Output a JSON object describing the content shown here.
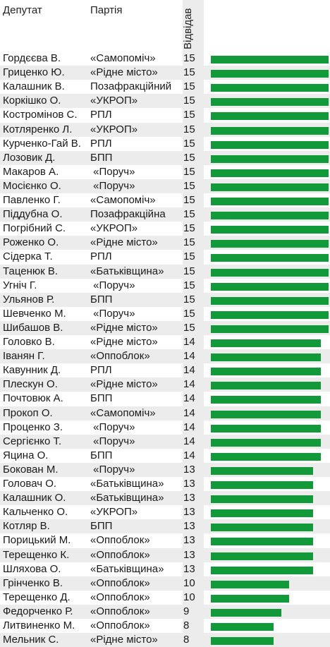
{
  "header": {
    "name": "Депутат",
    "party": "Партія",
    "visits": "Відвідав"
  },
  "colors": {
    "bar": "#129a3a",
    "stripe": "#ececec"
  },
  "chart_data": {
    "type": "bar",
    "orientation": "horizontal",
    "columns": [
      "Депутат",
      "Партія",
      "Відвідав"
    ],
    "xlim": [
      0,
      15
    ],
    "rows": [
      {
        "name": "Гордєєва В.",
        "party": "«Самопоміч»",
        "value": 15
      },
      {
        "name": "Гриценко Ю.",
        "party": "«Рідне місто»",
        "value": 15
      },
      {
        "name": "Калашник В.",
        "party": "Позафракційний",
        "value": 15
      },
      {
        "name": "Коркішко О.",
        "party": "«УКРОП»",
        "value": 15
      },
      {
        "name": "Костромінов С.",
        "party": "РПЛ",
        "value": 15
      },
      {
        "name": "Котляренко Л.",
        "party": "«УКРОП»",
        "value": 15
      },
      {
        "name": "Курченко-Гай В.",
        "party": "РПЛ",
        "value": 15
      },
      {
        "name": "Лозовик Д.",
        "party": "БПП",
        "value": 15
      },
      {
        "name": "Макаров А.",
        "party": " «Поруч»",
        "value": 15
      },
      {
        "name": "Мосієнко О.",
        "party": " «Поруч»",
        "value": 15
      },
      {
        "name": "Павленко Г.",
        "party": "«Самопоміч»",
        "value": 15
      },
      {
        "name": "Піддубна О.",
        "party": "Позафракційна",
        "value": 15
      },
      {
        "name": "Погрібний С.",
        "party": "«УКРОП»",
        "value": 15
      },
      {
        "name": "Роженко О.",
        "party": "«Рідне місто»",
        "value": 15
      },
      {
        "name": "Сідерка Т.",
        "party": "РПЛ",
        "value": 15
      },
      {
        "name": "Таценюк В.",
        "party": "«Батьківщина»",
        "value": 15
      },
      {
        "name": "Угніч Г.",
        "party": " «Поруч»",
        "value": 15
      },
      {
        "name": "Ульянов Р.",
        "party": "БПП",
        "value": 15
      },
      {
        "name": "Шевченко М.",
        "party": " «Поруч»",
        "value": 15
      },
      {
        "name": "Шибашов В.",
        "party": "«Рідне місто»",
        "value": 15
      },
      {
        "name": "Головко В.",
        "party": "«Рідне місто»",
        "value": 14
      },
      {
        "name": "Іванян Г.",
        "party": "«Оппоблок»",
        "value": 14
      },
      {
        "name": "Кавунник Д.",
        "party": "РПЛ",
        "value": 14
      },
      {
        "name": "Плескун О.",
        "party": "«Рідне місто»",
        "value": 14
      },
      {
        "name": "Почтовюк А.",
        "party": "БПП",
        "value": 14
      },
      {
        "name": "Прокоп О.",
        "party": "«Самопоміч»",
        "value": 14
      },
      {
        "name": "Проценко З.",
        "party": " «Поруч»",
        "value": 14
      },
      {
        "name": "Сергієнко Т.",
        "party": " «Поруч»",
        "value": 14
      },
      {
        "name": "Яцина О.",
        "party": "БПП",
        "value": 14
      },
      {
        "name": "Бокован М.",
        "party": " «Поруч»",
        "value": 13
      },
      {
        "name": "Головач О.",
        "party": "«Батьківщина»",
        "value": 13
      },
      {
        "name": "Калашник О.",
        "party": "«Батьківщина»",
        "value": 13
      },
      {
        "name": "Кальченко О.",
        "party": "«УКРОП»",
        "value": 13
      },
      {
        "name": "Котляр В.",
        "party": "БПП",
        "value": 13
      },
      {
        "name": "Порицький М.",
        "party": "«Оппоблок»",
        "value": 13
      },
      {
        "name": "Терещенко К.",
        "party": "«Оппоблок»",
        "value": 13
      },
      {
        "name": "Шляхова О.",
        "party": "«Батьківщина»",
        "value": 13
      },
      {
        "name": "Грінченко В.",
        "party": "«Оппоблок»",
        "value": 10
      },
      {
        "name": "Терещенко Д.",
        "party": "«Оппоблок»",
        "value": 10
      },
      {
        "name": "Федорченко Р.",
        "party": "«Оппоблок»",
        "value": 9
      },
      {
        "name": "Литвиненко М.",
        "party": "«Оппоблок»",
        "value": 8
      },
      {
        "name": "Мельник С.",
        "party": "«Рідне місто»",
        "value": 8
      }
    ]
  }
}
